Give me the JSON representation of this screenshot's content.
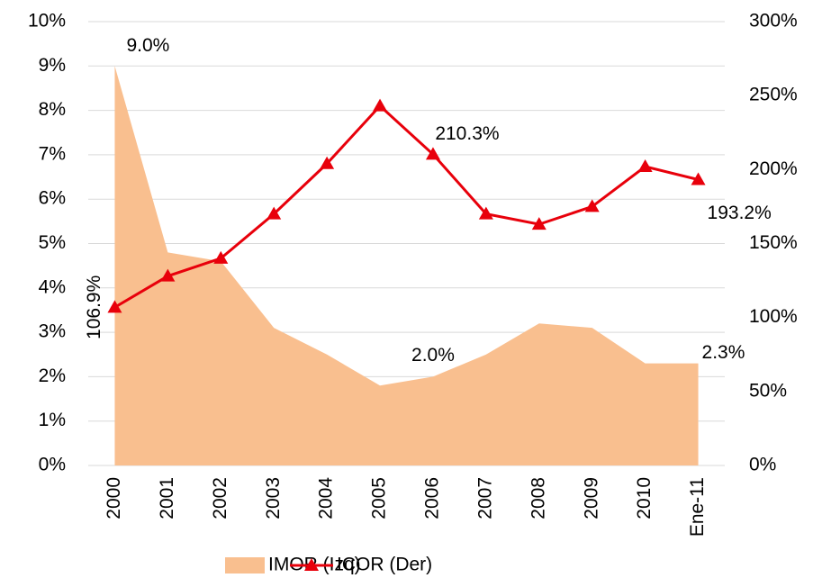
{
  "chart_data": {
    "type": "area-line",
    "categories": [
      "2000",
      "2001",
      "2002",
      "2003",
      "2004",
      "2005",
      "2006",
      "2007",
      "2008",
      "2009",
      "2010",
      "Ene-11"
    ],
    "series": [
      {
        "name": "IMOR (Izq)",
        "type": "area",
        "color": "#f9bf8f",
        "axis": "y",
        "values": [
          9.0,
          4.8,
          4.6,
          3.1,
          2.5,
          1.8,
          2.0,
          2.5,
          3.2,
          3.1,
          2.3,
          2.3
        ],
        "value_labels": [
          "9.0%",
          null,
          null,
          null,
          null,
          null,
          "2.0%",
          null,
          null,
          null,
          null,
          "2.3%"
        ]
      },
      {
        "name": "ICOR (Der)",
        "type": "line",
        "color": "#e8000b",
        "axis": "y2",
        "marker": "triangle",
        "values": [
          106.9,
          128,
          140,
          170,
          204,
          243,
          210.3,
          170,
          163,
          175,
          202,
          193.2
        ],
        "value_labels": [
          "106.9%",
          null,
          null,
          null,
          null,
          null,
          "210.3%",
          null,
          null,
          null,
          null,
          "193.2%"
        ]
      }
    ],
    "ylim": [
      0,
      10
    ],
    "yticks": [
      {
        "value": 0,
        "label": "0%"
      },
      {
        "value": 1,
        "label": "1%"
      },
      {
        "value": 2,
        "label": "2%"
      },
      {
        "value": 3,
        "label": "3%"
      },
      {
        "value": 4,
        "label": "4%"
      },
      {
        "value": 5,
        "label": "5%"
      },
      {
        "value": 6,
        "label": "6%"
      },
      {
        "value": 7,
        "label": "7%"
      },
      {
        "value": 8,
        "label": "8%"
      },
      {
        "value": 9,
        "label": "9%"
      },
      {
        "value": 10,
        "label": "10%"
      }
    ],
    "y2lim": [
      0,
      300
    ],
    "y2ticks": [
      {
        "value": 0,
        "label": "0%"
      },
      {
        "value": 50,
        "label": "50%"
      },
      {
        "value": 100,
        "label": "100%"
      },
      {
        "value": 150,
        "label": "150%"
      },
      {
        "value": 200,
        "label": "200%"
      },
      {
        "value": 250,
        "label": "250%"
      },
      {
        "value": 300,
        "label": "300%"
      }
    ],
    "grid": true,
    "legend": "bottom"
  }
}
